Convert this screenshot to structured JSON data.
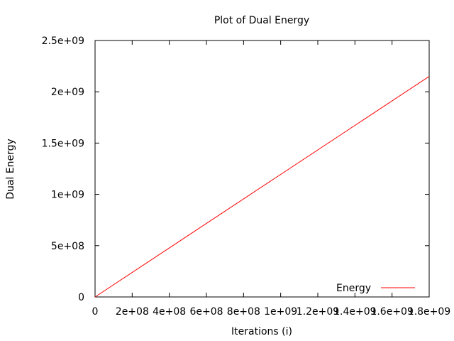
{
  "chart_data": {
    "type": "line",
    "title": "Plot of Dual Energy",
    "xlabel": "Iterations (i)",
    "ylabel": "Dual Energy",
    "xlim": [
      0,
      1800000000
    ],
    "ylim": [
      0,
      2500000000
    ],
    "x_ticks": [
      {
        "value": 0,
        "label": "0"
      },
      {
        "value": 200000000,
        "label": "2e+08"
      },
      {
        "value": 400000000,
        "label": "4e+08"
      },
      {
        "value": 600000000,
        "label": "6e+08"
      },
      {
        "value": 800000000,
        "label": "8e+08"
      },
      {
        "value": 1000000000,
        "label": "1e+09"
      },
      {
        "value": 1200000000,
        "label": "1.2e+09"
      },
      {
        "value": 1400000000,
        "label": "1.4e+09"
      },
      {
        "value": 1600000000,
        "label": "1.6e+09"
      },
      {
        "value": 1800000000,
        "label": "1.8e+09"
      }
    ],
    "y_ticks": [
      {
        "value": 0,
        "label": "0"
      },
      {
        "value": 500000000,
        "label": "5e+08"
      },
      {
        "value": 1000000000,
        "label": "1e+09"
      },
      {
        "value": 1500000000,
        "label": "1.5e+09"
      },
      {
        "value": 2000000000,
        "label": "2e+09"
      },
      {
        "value": 2500000000,
        "label": "2.5e+09"
      }
    ],
    "series": [
      {
        "name": "Energy",
        "color": "#ff0000",
        "x": [
          0,
          1800000000
        ],
        "y": [
          0,
          2150000000
        ]
      }
    ],
    "legend": "bottom-right",
    "grid": false
  }
}
